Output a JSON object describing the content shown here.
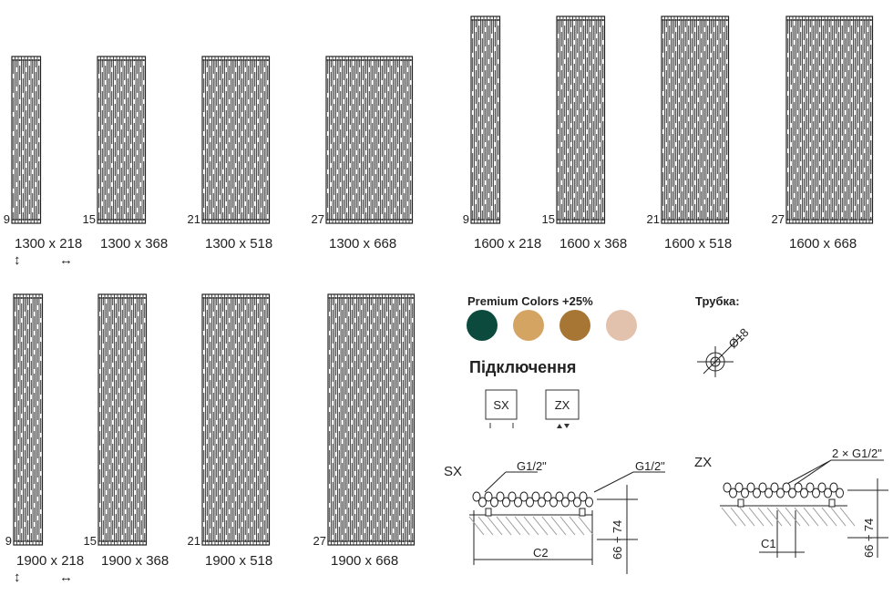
{
  "groups": [
    {
      "items": [
        {
          "tubes": "9",
          "size": "1300 x 218"
        },
        {
          "tubes": "15",
          "size": "1300 x 368"
        },
        {
          "tubes": "21",
          "size": "1300 x 518"
        },
        {
          "tubes": "27",
          "size": "1300 x 668"
        }
      ],
      "icons": [
        "↕",
        "↔"
      ]
    },
    {
      "items": [
        {
          "tubes": "9",
          "size": "1600 x 218"
        },
        {
          "tubes": "15",
          "size": "1600 x 368"
        },
        {
          "tubes": "21",
          "size": "1600 x 518"
        },
        {
          "tubes": "27",
          "size": "1600 x 668"
        }
      ]
    },
    {
      "items": [
        {
          "tubes": "9",
          "size": "1900 x 218"
        },
        {
          "tubes": "15",
          "size": "1900 x 368"
        },
        {
          "tubes": "21",
          "size": "1900 x 518"
        },
        {
          "tubes": "27",
          "size": "1900 x 668"
        }
      ],
      "icons": [
        "↕",
        "↔"
      ]
    }
  ],
  "premium_colors": {
    "title": "Premium Colors +25%",
    "swatches": [
      "#0b4a3d",
      "#d4a463",
      "#a87634",
      "#e2c2ad"
    ]
  },
  "connections": {
    "title": "Підключення",
    "options": [
      "SX",
      "ZX"
    ]
  },
  "tube": {
    "title": "Трубка:",
    "diameter": "Ø18"
  },
  "sx": {
    "label": "SX",
    "left_connection": "G1/2\"",
    "right_connection": "G1/2\"",
    "distance": "C2",
    "height": "66 ÷ 74"
  },
  "zx": {
    "label": "ZX",
    "connection": "2 × G1/2\"",
    "distance": "C1",
    "height": "66 ÷ 74"
  }
}
